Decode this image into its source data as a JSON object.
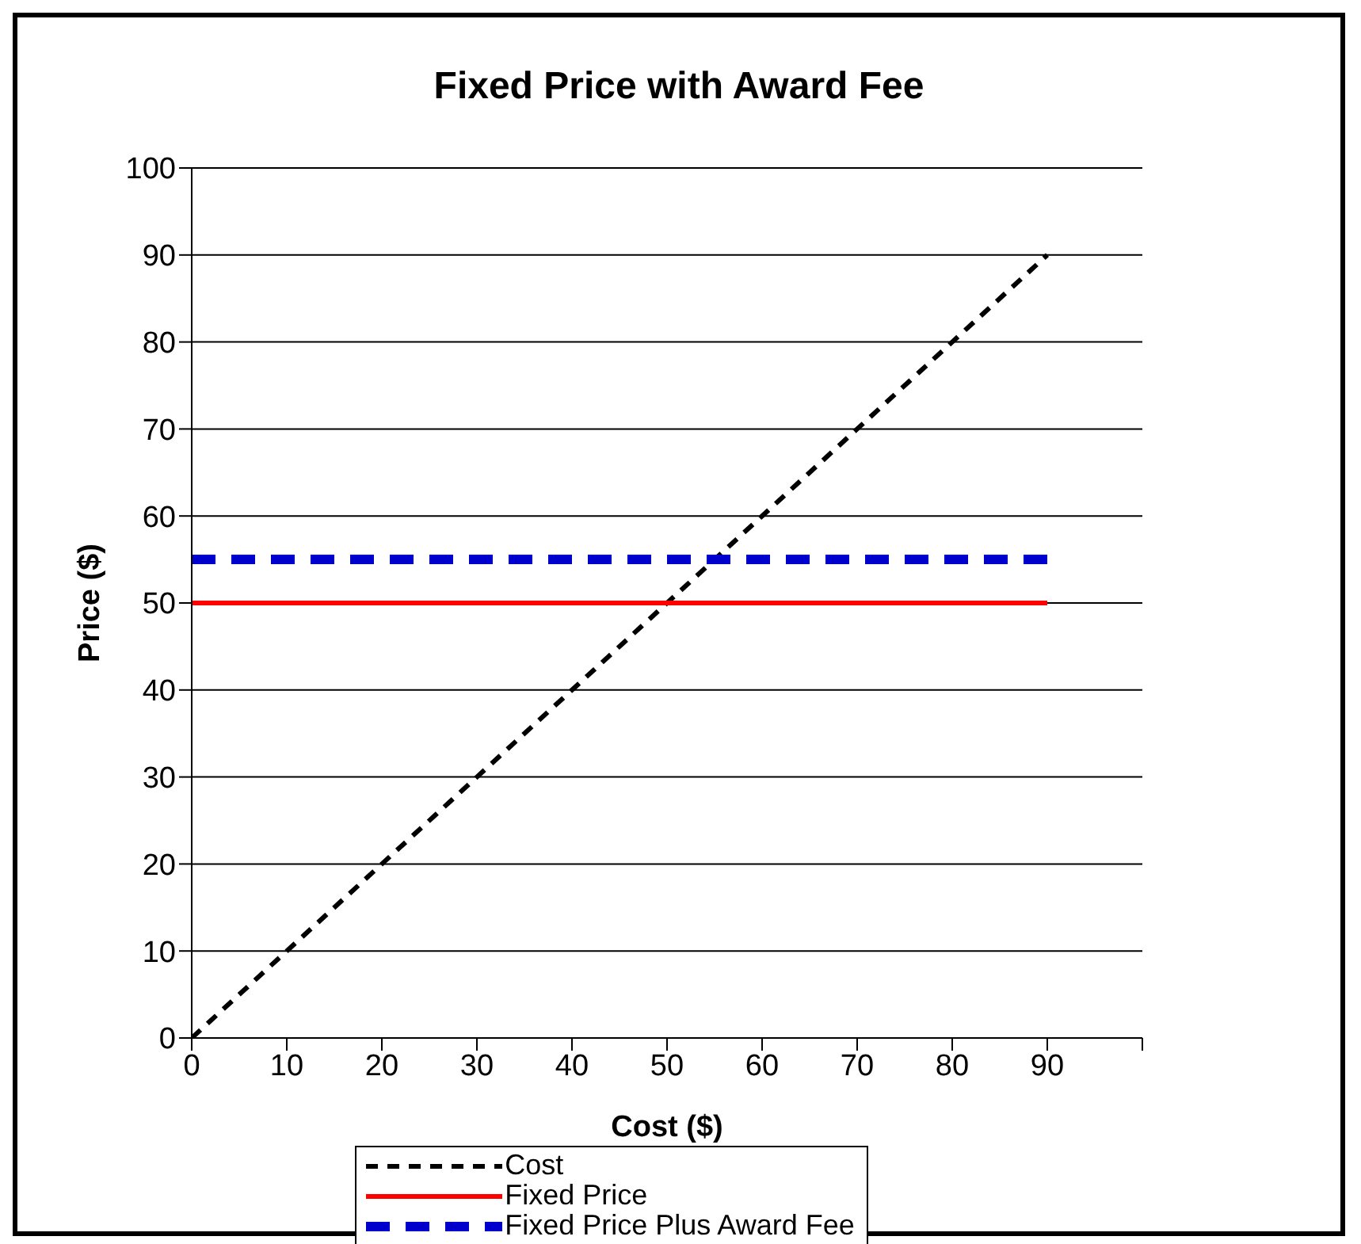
{
  "chart_data": {
    "type": "line",
    "title": "Fixed Price with Award Fee",
    "xlabel": "Cost ($)",
    "ylabel": "Price ($)",
    "x": [
      0,
      10,
      20,
      30,
      40,
      50,
      60,
      70,
      80,
      90
    ],
    "series": [
      {
        "name": "Cost",
        "color": "#000000",
        "line_style": "dashed",
        "values": [
          0,
          10,
          20,
          30,
          40,
          50,
          60,
          70,
          80,
          90
        ]
      },
      {
        "name": "Fixed Price",
        "color": "#ff0000",
        "line_style": "solid",
        "values": [
          50,
          50,
          50,
          50,
          50,
          50,
          50,
          50,
          50,
          50
        ]
      },
      {
        "name": "Fixed Price Plus Award Fee",
        "color": "#0000cc",
        "line_style": "dashed",
        "values": [
          55,
          55,
          55,
          55,
          55,
          55,
          55,
          55,
          55,
          55
        ]
      }
    ],
    "xlim": [
      0,
      100
    ],
    "xticks": [
      0,
      10,
      20,
      30,
      40,
      50,
      60,
      70,
      80,
      90,
      {
        "value": 100,
        "label": null
      }
    ],
    "ylim": [
      0,
      100
    ],
    "yticks": [
      0,
      10,
      20,
      30,
      40,
      50,
      60,
      70,
      80,
      90,
      100
    ],
    "grid": "y",
    "legend": "bottom",
    "marker": "none"
  }
}
